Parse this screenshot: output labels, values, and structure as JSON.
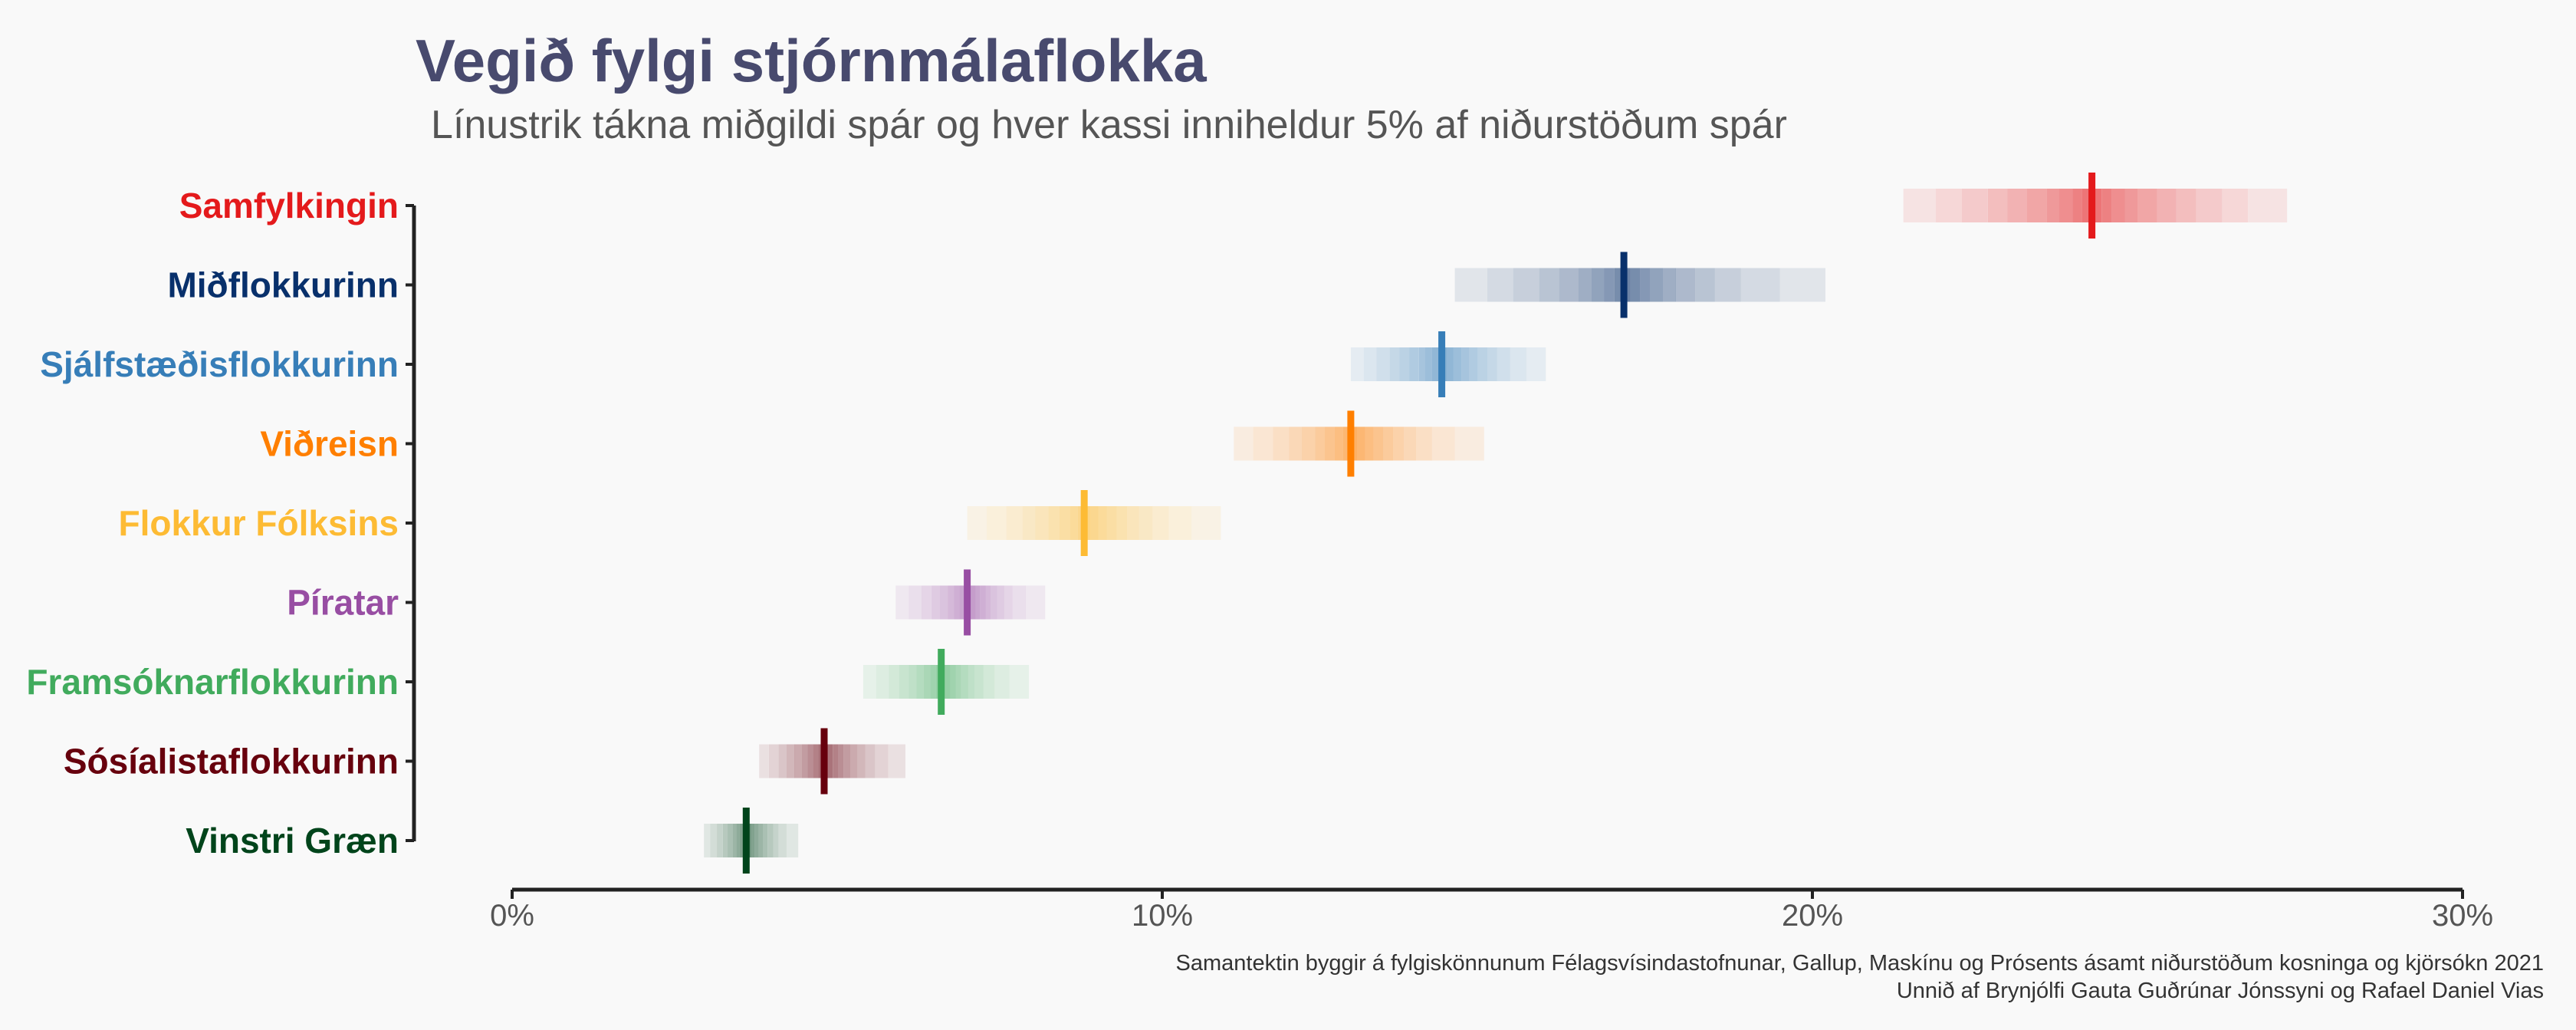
{
  "title": "Vegið fylgi stjórnmálaflokka",
  "subtitle": "Línustrik tákna miðgildi spár og hver kassi inniheldur 5% af niðurstöðum spár",
  "caption": {
    "line1": "Samantektin byggir á fylgiskönnunum Félagsvísindastofnunar, Gallup, Maskínu og Prósents ásamt niðurstöðum kosninga og kjörsókn 2021",
    "line2": "Unnið af Brynjólfi Gauta Guðrúnar Jónssyni og Rafael Daniel Vias"
  },
  "chart_data": {
    "type": "interval",
    "xlim": [
      0,
      30
    ],
    "x_ticks": [
      0,
      10,
      20,
      30
    ],
    "x_tick_labels": [
      "0%",
      "10%",
      "20%",
      "30%"
    ],
    "grid": false,
    "legend": "none",
    "series": [
      {
        "name": "Samfylkingin",
        "color": "#e41a1c",
        "median": 24.3,
        "quantiles": [
          21.4,
          21.9,
          22.3,
          22.7,
          23.0,
          23.3,
          23.6,
          23.8,
          24.0,
          24.15,
          24.3,
          24.45,
          24.6,
          24.8,
          25.0,
          25.3,
          25.6,
          25.9,
          26.3,
          26.7,
          27.3
        ]
      },
      {
        "name": "Miðflokkurinn",
        "color": "#08306b",
        "median": 17.1,
        "quantiles": [
          14.5,
          15.0,
          15.4,
          15.8,
          16.1,
          16.4,
          16.6,
          16.8,
          16.95,
          17.05,
          17.1,
          17.2,
          17.35,
          17.5,
          17.7,
          17.9,
          18.2,
          18.5,
          18.9,
          19.5,
          20.2
        ]
      },
      {
        "name": "Sjálfstæðisflokkurinn",
        "color": "#377eb8",
        "median": 14.3,
        "quantiles": [
          12.9,
          13.1,
          13.3,
          13.5,
          13.65,
          13.8,
          13.95,
          14.05,
          14.15,
          14.25,
          14.3,
          14.38,
          14.48,
          14.6,
          14.72,
          14.85,
          15.0,
          15.15,
          15.35,
          15.6,
          15.9
        ]
      },
      {
        "name": "Viðreisn",
        "color": "#ff7f00",
        "median": 12.9,
        "quantiles": [
          11.1,
          11.4,
          11.7,
          11.95,
          12.15,
          12.35,
          12.5,
          12.65,
          12.78,
          12.88,
          12.9,
          13.0,
          13.12,
          13.25,
          13.4,
          13.55,
          13.72,
          13.9,
          14.15,
          14.5,
          14.95
        ]
      },
      {
        "name": "Flokkur Fólksins",
        "color": "#fdbb34",
        "median": 8.8,
        "quantiles": [
          7.0,
          7.3,
          7.6,
          7.85,
          8.05,
          8.25,
          8.42,
          8.58,
          8.7,
          8.78,
          8.8,
          8.9,
          9.02,
          9.15,
          9.3,
          9.46,
          9.64,
          9.85,
          10.1,
          10.45,
          10.9
        ]
      },
      {
        "name": "Píratar",
        "color": "#984ea3",
        "median": 7.0,
        "quantiles": [
          5.9,
          6.1,
          6.3,
          6.45,
          6.58,
          6.7,
          6.8,
          6.88,
          6.95,
          6.99,
          7.0,
          7.06,
          7.13,
          7.2,
          7.28,
          7.36,
          7.46,
          7.57,
          7.7,
          7.9,
          8.2
        ]
      },
      {
        "name": "Framsóknarflokkurinn",
        "color": "#41ab5d",
        "median": 6.6,
        "quantiles": [
          5.4,
          5.6,
          5.8,
          5.95,
          6.1,
          6.22,
          6.33,
          6.43,
          6.52,
          6.58,
          6.6,
          6.66,
          6.74,
          6.82,
          6.91,
          7.01,
          7.12,
          7.25,
          7.42,
          7.65,
          7.95
        ]
      },
      {
        "name": "Sósíalistaflokkurinn",
        "color": "#67000d",
        "median": 4.8,
        "quantiles": [
          3.8,
          3.95,
          4.1,
          4.22,
          4.34,
          4.45,
          4.55,
          4.63,
          4.71,
          4.77,
          4.8,
          4.86,
          4.93,
          5.01,
          5.1,
          5.2,
          5.31,
          5.43,
          5.58,
          5.78,
          6.05
        ]
      },
      {
        "name": "Vinstri Græn",
        "color": "#00441b",
        "median": 3.6,
        "quantiles": [
          2.95,
          3.05,
          3.15,
          3.24,
          3.32,
          3.39,
          3.45,
          3.5,
          3.55,
          3.58,
          3.6,
          3.64,
          3.68,
          3.73,
          3.79,
          3.86,
          3.93,
          4.01,
          4.1,
          4.22,
          4.4
        ]
      }
    ]
  }
}
